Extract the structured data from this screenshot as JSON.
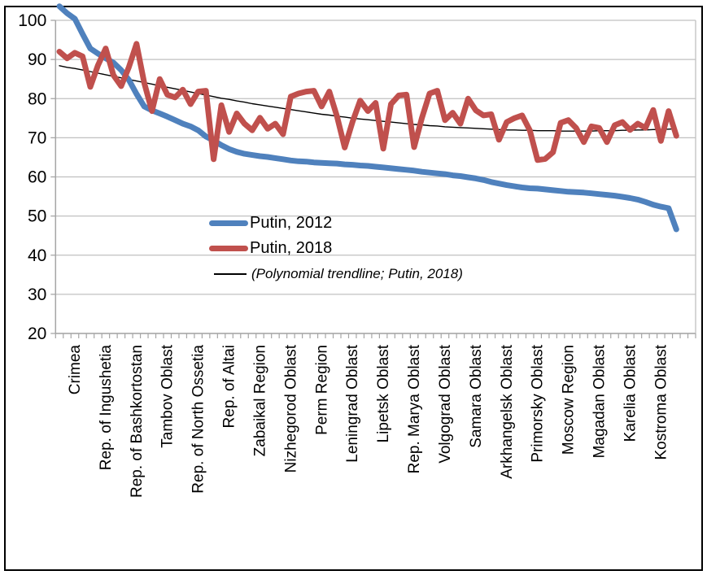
{
  "chart_data": {
    "type": "line",
    "title": "",
    "xlabel": "",
    "ylabel": "",
    "ylim": [
      20,
      100
    ],
    "y_ticks": [
      100,
      90,
      80,
      70,
      60,
      50,
      40,
      30,
      20
    ],
    "grid": true,
    "n_categories": 83,
    "x_label_start_index": 2,
    "x_label_every": 4,
    "x_labels": [
      "Crimea",
      "Rep. of Ingushetia",
      "Rep. of Bashkortostan",
      "Tambov Oblast",
      "Rep. of North Ossetia",
      "Rep. of Altai",
      "Zabaikal Region",
      "Nizhegorod Oblast",
      "Perm Region",
      "Leningrad Oblast",
      "Lipetsk Oblast",
      "Rep. Marya Oblast",
      "Volgograd Oblast",
      "Samara Oblast",
      "Arkhangelsk Oblast",
      "Primorsky Oblast",
      "Moscow Region",
      "Magadan Oblast",
      "Karelia Oblast",
      "Kostroma Oblast"
    ],
    "series": [
      {
        "name": "Putin, 2012",
        "color": "#4F81BD",
        "stroke_width": 7,
        "values": [
          103.6,
          101.8,
          100.4,
          96.5,
          92.8,
          91.5,
          90.3,
          89.2,
          87.3,
          84.8,
          81.2,
          78.0,
          77.0,
          76.2,
          75.4,
          74.5,
          73.6,
          72.9,
          71.9,
          70.3,
          69.3,
          68.1,
          67.1,
          66.4,
          65.9,
          65.6,
          65.3,
          65.1,
          64.8,
          64.5,
          64.2,
          64.0,
          63.9,
          63.7,
          63.6,
          63.5,
          63.4,
          63.2,
          63.1,
          62.9,
          62.8,
          62.6,
          62.4,
          62.2,
          62.0,
          61.8,
          61.6,
          61.3,
          61.1,
          60.9,
          60.7,
          60.4,
          60.2,
          59.9,
          59.6,
          59.2,
          58.7,
          58.3,
          57.9,
          57.6,
          57.3,
          57.1,
          57.0,
          56.8,
          56.6,
          56.4,
          56.2,
          56.1,
          56.0,
          55.8,
          55.6,
          55.4,
          55.2,
          54.9,
          54.6,
          54.2,
          53.6,
          52.9,
          52.4,
          52.0,
          46.6
        ]
      },
      {
        "name": "Putin, 2018",
        "color": "#C0504D",
        "stroke_width": 7,
        "values": [
          92.0,
          90.3,
          91.7,
          90.8,
          83.0,
          88.5,
          92.8,
          86.0,
          83.2,
          88.0,
          94.0,
          84.0,
          76.8,
          85.0,
          81.0,
          80.3,
          82.3,
          78.6,
          81.8,
          82.0,
          64.5,
          78.3,
          71.5,
          76.2,
          73.6,
          71.9,
          75.1,
          72.3,
          73.6,
          70.9,
          80.5,
          81.3,
          81.8,
          82.0,
          78.0,
          81.8,
          75.4,
          67.5,
          74.0,
          79.5,
          76.8,
          78.9,
          67.2,
          78.6,
          80.8,
          81.0,
          67.6,
          75.0,
          81.3,
          82.0,
          74.5,
          76.4,
          73.6,
          80.0,
          77.0,
          75.7,
          76.0,
          69.5,
          74.0,
          75.0,
          75.7,
          71.9,
          64.3,
          64.6,
          66.3,
          73.8,
          74.5,
          72.5,
          68.9,
          72.9,
          72.5,
          68.9,
          73.2,
          74.0,
          72.0,
          73.6,
          72.5,
          77.1,
          69.2,
          76.8,
          70.5
        ]
      },
      {
        "name": "(Polynomial trendline; Putin, 2018)",
        "color": "#000000",
        "stroke_width": 1.4,
        "values": [
          88.4,
          88.0,
          87.7,
          87.3,
          86.9,
          86.5,
          86.1,
          85.7,
          85.3,
          84.9,
          84.5,
          84.1,
          83.7,
          83.3,
          82.9,
          82.5,
          82.1,
          81.7,
          81.3,
          80.9,
          80.5,
          80.1,
          79.8,
          79.4,
          79.1,
          78.7,
          78.4,
          78.1,
          77.8,
          77.5,
          77.2,
          76.9,
          76.6,
          76.3,
          76.0,
          75.8,
          75.5,
          75.3,
          75.0,
          74.8,
          74.6,
          74.4,
          74.2,
          74.0,
          73.8,
          73.6,
          73.4,
          73.3,
          73.1,
          73.0,
          72.8,
          72.7,
          72.6,
          72.5,
          72.4,
          72.3,
          72.2,
          72.1,
          72.0,
          72.0,
          71.9,
          71.9,
          71.8,
          71.8,
          71.8,
          71.7,
          71.7,
          71.7,
          71.7,
          71.7,
          71.8,
          71.8,
          71.8,
          71.9,
          71.9,
          72.0,
          72.0,
          72.1,
          72.1,
          72.2,
          72.3
        ]
      }
    ],
    "legend_position": "inside-left-middle",
    "axis_color": "#a6a6a6",
    "grid_color": "#c0c0c0",
    "text_color": "#000000"
  }
}
